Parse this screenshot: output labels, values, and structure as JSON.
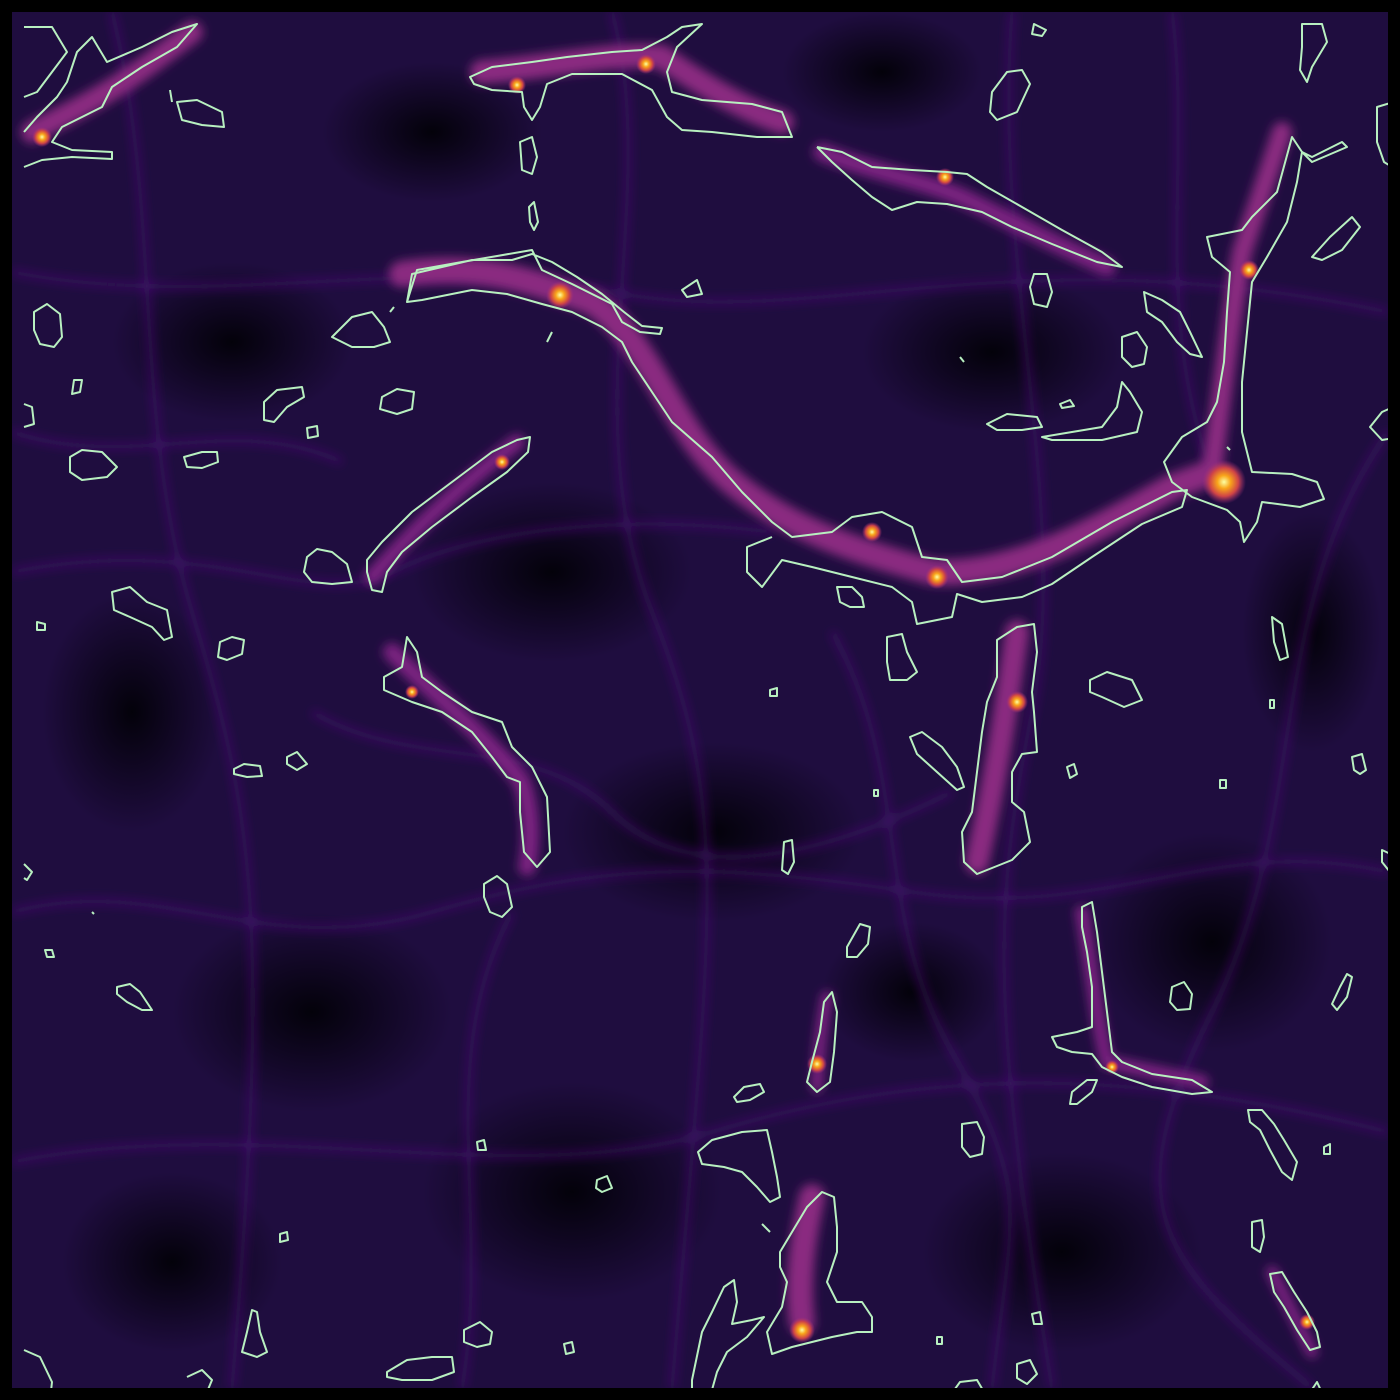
{
  "image": {
    "kind": "density-field-with-contours",
    "colormap": [
      "#000004",
      "#1c0c3a",
      "#3b0f6f",
      "#6a1a7c",
      "#9c2e7f",
      "#cf4446",
      "#f07f28",
      "#fbb61a",
      "#fcffa4"
    ],
    "contour_color": "#b8f0c0",
    "background_color": "#1c0c3a",
    "frame_color": "#000000"
  }
}
